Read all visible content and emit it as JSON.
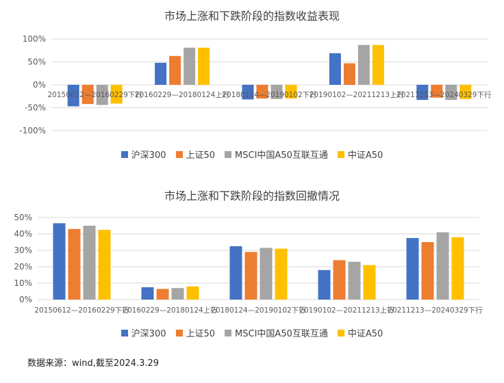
{
  "chart_data": [
    {
      "type": "bar",
      "title": "市场上涨和下跌阶段的指数收益表现",
      "categories": [
        "20150612—20160229下行",
        "20160229—20180124上行",
        "20180124—20190102下行",
        "20190102—20211213上行",
        "20211213—20240329下行"
      ],
      "series": [
        {
          "name": "沪深300",
          "color": "#4472C4",
          "values": [
            -47,
            48,
            -32,
            69,
            -33
          ]
        },
        {
          "name": "上证50",
          "color": "#ED7D31",
          "values": [
            -42,
            63,
            -30,
            47,
            -28
          ]
        },
        {
          "name": "MSCI中国A50互联互通",
          "color": "#A5A5A5",
          "values": [
            -44,
            81,
            -31,
            87,
            -33
          ]
        },
        {
          "name": "中证A50",
          "color": "#FFC000",
          "values": [
            -41,
            81,
            -30,
            87,
            -31
          ]
        }
      ],
      "yticks": [
        "100%",
        "50%",
        "0%",
        "-50%",
        "-100%"
      ],
      "ylim": [
        -100,
        100
      ],
      "grid": true,
      "legend": "bottom"
    },
    {
      "type": "bar",
      "title": "市场上涨和下跌阶段的指数回撤情况",
      "categories": [
        "20150612—20160229下行",
        "20160229—20180124上行",
        "20180124—20190102下行",
        "20190102—20211213上行",
        "20211213—20240329下行"
      ],
      "series": [
        {
          "name": "沪深300",
          "color": "#4472C4",
          "values": [
            46.5,
            7.5,
            32.5,
            18,
            37.5
          ]
        },
        {
          "name": "上证50",
          "color": "#ED7D31",
          "values": [
            43,
            6.5,
            29,
            24,
            35
          ]
        },
        {
          "name": "MSCI中国A50互联互通",
          "color": "#A5A5A5",
          "values": [
            45,
            7,
            31.5,
            23,
            41
          ]
        },
        {
          "name": "中证A50",
          "color": "#FFC000",
          "values": [
            42.5,
            8,
            31,
            21,
            38
          ]
        }
      ],
      "yticks": [
        "50%",
        "40%",
        "30%",
        "20%",
        "10%",
        "0%"
      ],
      "ylim": [
        0,
        50
      ],
      "grid": true,
      "legend": "bottom"
    }
  ],
  "source_text": "数据来源：wind,截至2024.3.29"
}
